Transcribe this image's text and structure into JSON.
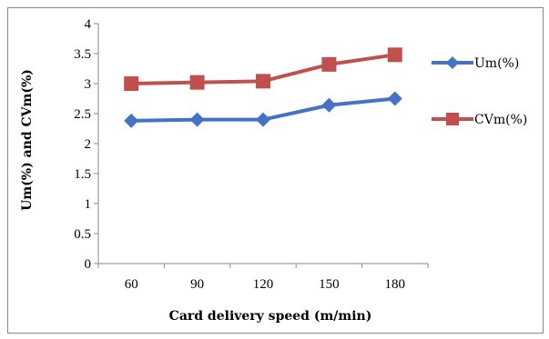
{
  "chart_data": {
    "type": "line",
    "xlabel": "Card delivery speed (m/min)",
    "ylabel": "Um(%) and CVm(%)",
    "categories": [
      "60",
      "90",
      "120",
      "150",
      "180"
    ],
    "ylim": [
      0,
      4
    ],
    "yticks": [
      "0",
      "0.5",
      "1",
      "1.5",
      "2",
      "2.5",
      "3",
      "3.5",
      "4"
    ],
    "grid": false,
    "legend": "right",
    "series": [
      {
        "name": "Um(%)",
        "values": [
          2.38,
          2.4,
          2.4,
          2.64,
          2.75
        ],
        "color": "#4472C4",
        "marker": "diamond"
      },
      {
        "name": "CVm(%)",
        "values": [
          3.0,
          3.02,
          3.04,
          3.32,
          3.48
        ],
        "color": "#C0504D",
        "marker": "square"
      }
    ]
  }
}
